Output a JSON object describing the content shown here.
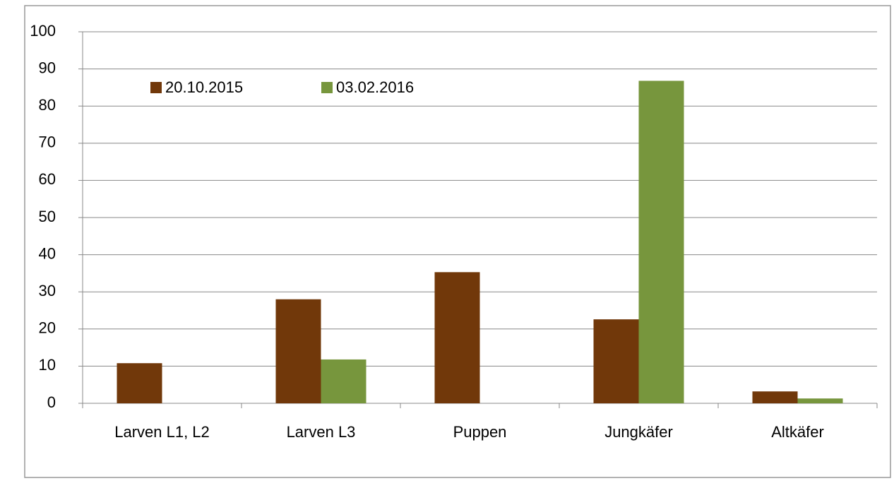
{
  "chart_data": {
    "type": "bar",
    "categories": [
      "Larven L1, L2",
      "Larven L3",
      "Puppen",
      "Jungkäfer",
      "Altkäfer"
    ],
    "series": [
      {
        "name": "20.10.2015",
        "color": "#71380a",
        "values": [
          10.8,
          28,
          35.3,
          22.6,
          3.2
        ]
      },
      {
        "name": "03.02.2016",
        "color": "#77963d",
        "values": [
          0,
          11.8,
          0,
          86.8,
          1.3
        ]
      }
    ],
    "ylim": [
      0,
      100
    ],
    "yticks": [
      0,
      10,
      20,
      30,
      40,
      50,
      60,
      70,
      80,
      90,
      100
    ],
    "grid": true,
    "legend": "top-left"
  }
}
